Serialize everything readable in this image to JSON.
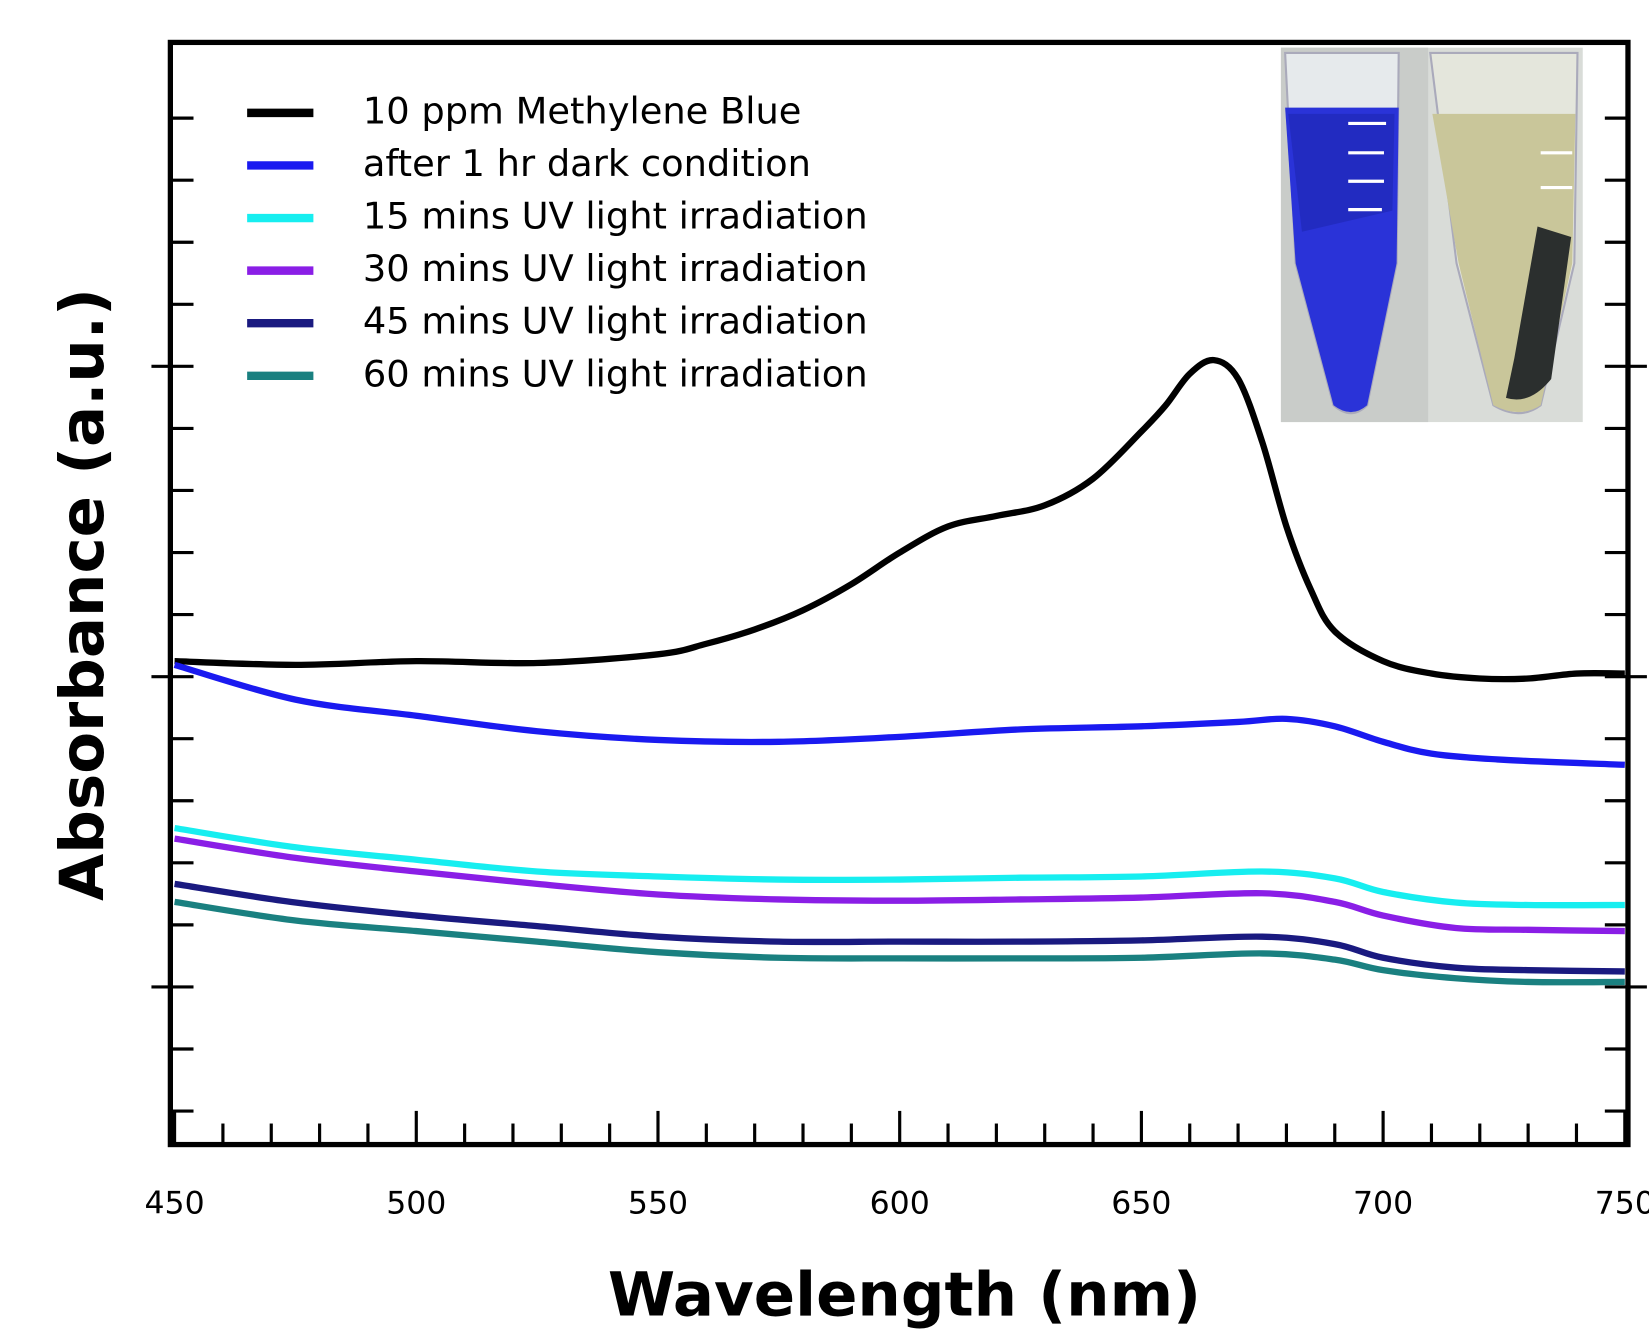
{
  "chart_data": {
    "type": "line",
    "x_label": "Wavelength (nm)",
    "y_label": "Absorbance (a.u.)",
    "xlim": [
      450,
      750
    ],
    "xticks": [
      450,
      500,
      550,
      600,
      650,
      700,
      750
    ],
    "xticks_minor": [
      460,
      470,
      480,
      490,
      510,
      520,
      530,
      540,
      560,
      570,
      580,
      590,
      610,
      620,
      630,
      640,
      660,
      670,
      680,
      690,
      710,
      720,
      730,
      740
    ],
    "ylim": [
      -0.254,
      1.522
    ],
    "yticks": [
      -0.2,
      -0.1,
      0,
      0.1,
      0.2,
      0.3,
      0.4,
      0.5,
      0.6,
      0.7,
      0.8,
      0.9,
      1,
      1.1,
      1.2,
      1.3,
      1.4
    ],
    "yticks_major": [
      0,
      0.5,
      1
    ],
    "legend": "upper left",
    "series": [
      {
        "name": "10 ppm Methylene Blue",
        "color": "#000000",
        "x": [
          450,
          475,
          500,
          525,
          550,
          560,
          570,
          580,
          590,
          600,
          610,
          620,
          630,
          640,
          650,
          655,
          660,
          665,
          670,
          675,
          680,
          685,
          690,
          700,
          710,
          720,
          730,
          740,
          750
        ],
        "values": [
          0.525,
          0.519,
          0.525,
          0.522,
          0.536,
          0.553,
          0.576,
          0.607,
          0.649,
          0.7,
          0.742,
          0.759,
          0.776,
          0.819,
          0.895,
          0.937,
          0.988,
          1.01,
          0.98,
          0.878,
          0.742,
          0.641,
          0.573,
          0.525,
          0.505,
          0.497,
          0.497,
          0.505,
          0.505
        ]
      },
      {
        "name": "after 1 hr dark condition",
        "color": "#1a1af0",
        "x": [
          450,
          475,
          500,
          525,
          550,
          575,
          600,
          625,
          650,
          670,
          680,
          690,
          700,
          710,
          725,
          750
        ],
        "values": [
          0.519,
          0.463,
          0.437,
          0.412,
          0.398,
          0.395,
          0.403,
          0.415,
          0.42,
          0.427,
          0.432,
          0.42,
          0.395,
          0.376,
          0.366,
          0.358
        ]
      },
      {
        "name": "15 mins UV light irradiation",
        "color": "#17eef0",
        "x": [
          450,
          475,
          500,
          525,
          550,
          575,
          600,
          625,
          650,
          675,
          690,
          700,
          715,
          730,
          750
        ],
        "values": [
          0.256,
          0.225,
          0.205,
          0.186,
          0.178,
          0.173,
          0.173,
          0.176,
          0.178,
          0.186,
          0.175,
          0.153,
          0.136,
          0.132,
          0.132
        ]
      },
      {
        "name": "30 mins UV light irradiation",
        "color": "#8a1ee6",
        "x": [
          450,
          475,
          500,
          525,
          550,
          575,
          600,
          625,
          650,
          675,
          690,
          700,
          715,
          730,
          750
        ],
        "values": [
          0.239,
          0.208,
          0.186,
          0.166,
          0.149,
          0.141,
          0.139,
          0.141,
          0.144,
          0.151,
          0.137,
          0.115,
          0.095,
          0.092,
          0.09
        ]
      },
      {
        "name": "45 mins UV light irradiation",
        "color": "#1a1a80",
        "x": [
          450,
          475,
          500,
          525,
          550,
          575,
          600,
          625,
          650,
          675,
          690,
          700,
          715,
          730,
          750
        ],
        "values": [
          0.166,
          0.136,
          0.115,
          0.098,
          0.081,
          0.073,
          0.073,
          0.073,
          0.075,
          0.081,
          0.069,
          0.047,
          0.031,
          0.027,
          0.025
        ]
      },
      {
        "name": "60 mins UV light irradiation",
        "color": "#1a8080",
        "x": [
          450,
          475,
          500,
          525,
          550,
          575,
          600,
          625,
          650,
          675,
          690,
          700,
          715,
          730,
          750
        ],
        "values": [
          0.137,
          0.107,
          0.09,
          0.073,
          0.056,
          0.047,
          0.046,
          0.046,
          0.047,
          0.054,
          0.044,
          0.027,
          0.014,
          0.008,
          0.008
        ]
      }
    ]
  }
}
